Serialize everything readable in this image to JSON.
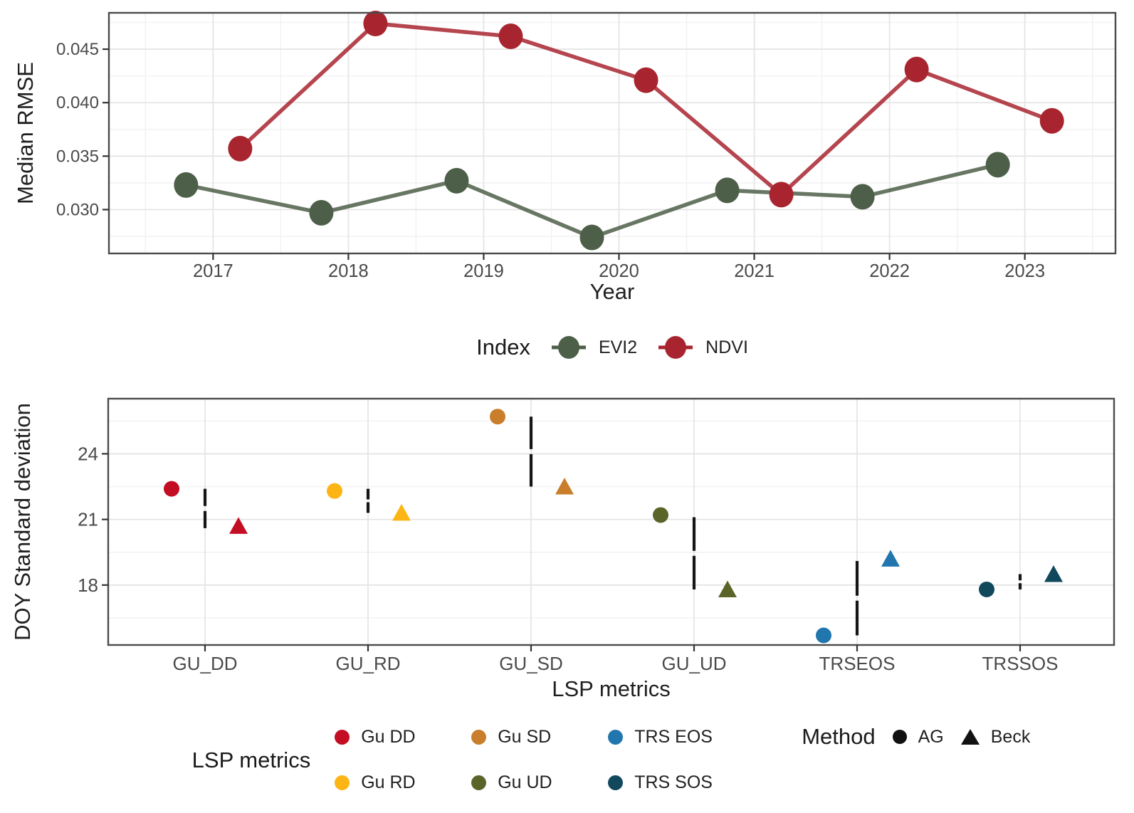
{
  "page": {
    "background": "#ffffff"
  },
  "colors": {
    "evi2": "#4d5f48",
    "ndvi": "#a8252f",
    "gu_dd": "#c30d23",
    "gu_rd": "#fdb515",
    "gu_sd": "#c87e2b",
    "gu_ud": "#5a6428",
    "trs_eos": "#2176ae",
    "trs_sos": "#11485c",
    "range_bar": "#161616",
    "method_black": "#111111",
    "panel_border": "#4b4b4b",
    "grid_major": "#e5e5e5",
    "grid_minor": "#f2f2f2",
    "tick_mark": "#333333",
    "tick_label": "#4a4a4a",
    "axis_title": "#1f1f1f"
  },
  "chart_data": [
    {
      "id": "median_rmse_by_year",
      "type": "line",
      "title": "",
      "xlabel": "Year",
      "ylabel": "Median RMSE",
      "xlim": [
        2016.23,
        2023.67
      ],
      "ylim": [
        0.0259,
        0.0484
      ],
      "x_ticks": [
        {
          "v": 2017,
          "label": "2017"
        },
        {
          "v": 2018,
          "label": "2018"
        },
        {
          "v": 2019,
          "label": "2019"
        },
        {
          "v": 2020,
          "label": "2020"
        },
        {
          "v": 2021,
          "label": "2021"
        },
        {
          "v": 2022,
          "label": "2022"
        },
        {
          "v": 2023,
          "label": "2023"
        }
      ],
      "x_minor": [
        2016.5,
        2017.5,
        2018.5,
        2019.5,
        2020.5,
        2021.5,
        2022.5,
        2023.5
      ],
      "y_ticks": [
        {
          "v": 0.03,
          "label": "0.030"
        },
        {
          "v": 0.035,
          "label": "0.035"
        },
        {
          "v": 0.04,
          "label": "0.040"
        },
        {
          "v": 0.045,
          "label": "0.045"
        }
      ],
      "y_minor": [
        0.0275,
        0.0325,
        0.0375,
        0.0425,
        0.0475
      ],
      "grid": true,
      "legend_title": "Index",
      "legend_position": "bottom",
      "series": [
        {
          "name": "EVI2",
          "color": "evi2",
          "x": [
            2016.8,
            2017.8,
            2018.8,
            2019.8,
            2020.8,
            2021.8,
            2022.8
          ],
          "y": [
            0.0323,
            0.0297,
            0.0327,
            0.0274,
            0.0318,
            0.0312,
            0.0342
          ]
        },
        {
          "name": "NDVI",
          "color": "ndvi",
          "x": [
            2017.2,
            2018.2,
            2019.2,
            2020.2,
            2021.2,
            2022.2,
            2023.2
          ],
          "y": [
            0.0357,
            0.0474,
            0.0462,
            0.0421,
            0.0314,
            0.0431,
            0.0383
          ]
        }
      ]
    },
    {
      "id": "doy_sd_by_lsp_metric",
      "type": "scatter",
      "title": "",
      "xlabel": "LSP metrics",
      "ylabel": "DOY Standard deviation",
      "ylim": [
        15.26,
        26.52
      ],
      "y_ticks": [
        {
          "v": 18,
          "label": "18"
        },
        {
          "v": 21,
          "label": "21"
        },
        {
          "v": 24,
          "label": "24"
        }
      ],
      "y_minor": [
        16.5,
        19.5,
        22.5,
        25.5
      ],
      "categories": [
        "GU_DD",
        "GU_RD",
        "GU_SD",
        "GU_UD",
        "TRSEOS",
        "TRSSOS"
      ],
      "grid": true,
      "legend_position": "bottom",
      "groups": [
        {
          "metric": "GU_DD",
          "color": "gu_dd",
          "ag": 22.4,
          "beck": 20.7,
          "bar": [
            20.6,
            22.4
          ]
        },
        {
          "metric": "GU_RD",
          "color": "gu_rd",
          "ag": 22.3,
          "beck": 21.3,
          "bar": [
            21.3,
            22.4
          ]
        },
        {
          "metric": "GU_SD",
          "color": "gu_sd",
          "ag": 25.7,
          "beck": 22.5,
          "bar": [
            22.5,
            25.7
          ]
        },
        {
          "metric": "GU_UD",
          "color": "gu_ud",
          "ag": 21.2,
          "beck": 17.8,
          "bar": [
            17.8,
            21.1
          ]
        },
        {
          "metric": "TRSEOS",
          "color": "trs_eos",
          "ag": 15.7,
          "beck": 19.2,
          "bar": [
            15.7,
            19.1
          ]
        },
        {
          "metric": "TRSSOS",
          "color": "trs_sos",
          "ag": 17.8,
          "beck": 18.5,
          "bar": [
            17.8,
            18.5
          ]
        }
      ]
    }
  ],
  "legend_index": {
    "title": "Index",
    "items": [
      {
        "label": "EVI2",
        "color": "#4d5f48"
      },
      {
        "label": "NDVI",
        "color": "#a8252f"
      }
    ]
  },
  "legend_lsp": {
    "title": "LSP metrics",
    "rows": [
      [
        {
          "label": "Gu DD",
          "color": "#c30d23"
        },
        {
          "label": "Gu SD",
          "color": "#c87e2b"
        },
        {
          "label": "TRS EOS",
          "color": "#2176ae"
        }
      ],
      [
        {
          "label": "Gu RD",
          "color": "#fdb515"
        },
        {
          "label": "Gu UD",
          "color": "#5a6428"
        },
        {
          "label": "TRS SOS",
          "color": "#11485c"
        }
      ]
    ]
  },
  "legend_method": {
    "title": "Method",
    "items": [
      {
        "label": "AG",
        "shape": "circle",
        "color": "#111111"
      },
      {
        "label": "Beck",
        "shape": "triangle",
        "color": "#111111"
      }
    ]
  }
}
